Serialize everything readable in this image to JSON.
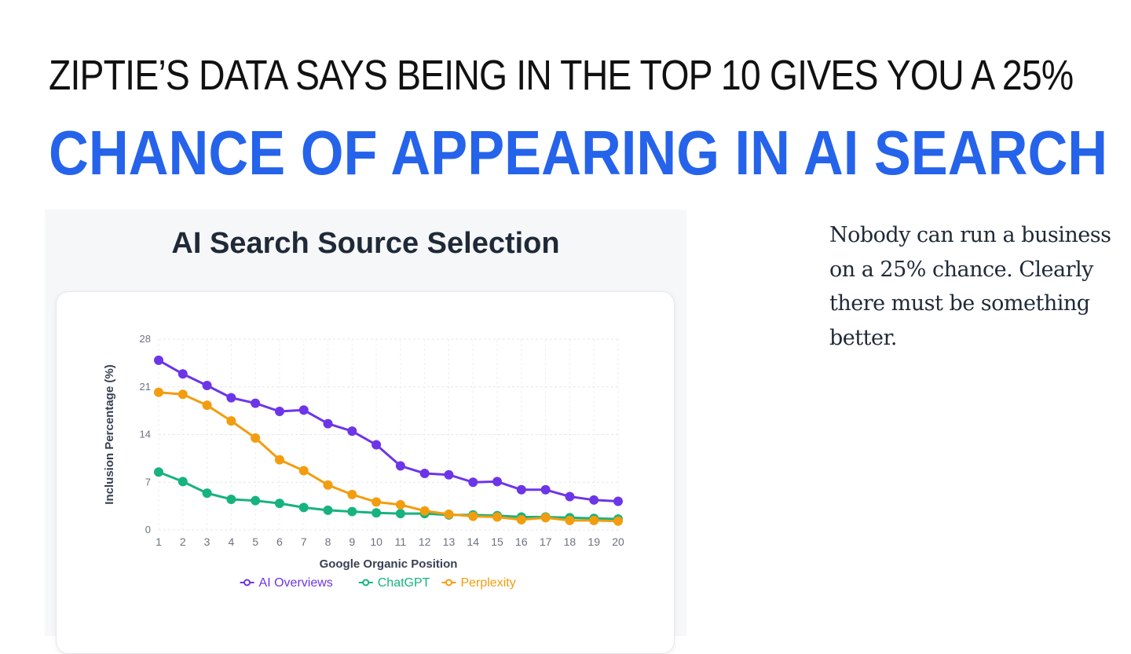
{
  "headline": {
    "line1": "ZIPTIE’S DATA SAYS BEING IN THE TOP 10 GIVES YOU A 25%",
    "line2": "CHANCE OF APPEARING IN AI SEARCH"
  },
  "body_text": "Nobody can run a business on a 25% chance. Clearly there must be something better.",
  "colors": {
    "accent": "#2563eb",
    "ai_overviews": "#6d35e8",
    "chatgpt": "#16b37e",
    "perplexity": "#f29d0f"
  },
  "chart_data": {
    "type": "line",
    "title": "AI Search Source Selection",
    "xlabel": "Google Organic Position",
    "ylabel": "Inclusion Percentage (%)",
    "x": [
      1,
      2,
      3,
      4,
      5,
      6,
      7,
      8,
      9,
      10,
      11,
      12,
      13,
      14,
      15,
      16,
      17,
      18,
      19,
      20
    ],
    "ylim": [
      0,
      28
    ],
    "yticks": [
      0,
      7,
      14,
      21,
      28
    ],
    "grid": true,
    "legend_position": "bottom",
    "series": [
      {
        "name": "AI Overviews",
        "color": "#6d35e8",
        "values": [
          24.9,
          22.9,
          21.2,
          19.4,
          18.6,
          17.4,
          17.6,
          15.6,
          14.5,
          12.5,
          9.4,
          8.3,
          8.1,
          7.0,
          7.1,
          5.9,
          5.9,
          4.9,
          4.4,
          4.2
        ]
      },
      {
        "name": "ChatGPT",
        "color": "#16b37e",
        "values": [
          8.5,
          7.1,
          5.4,
          4.5,
          4.3,
          3.9,
          3.3,
          2.9,
          2.7,
          2.5,
          2.4,
          2.4,
          2.2,
          2.2,
          2.1,
          1.9,
          1.9,
          1.8,
          1.7,
          1.6
        ]
      },
      {
        "name": "Perplexity",
        "color": "#f29d0f",
        "values": [
          20.2,
          19.9,
          18.3,
          16.0,
          13.5,
          10.3,
          8.7,
          6.6,
          5.2,
          4.1,
          3.7,
          2.8,
          2.3,
          2.0,
          1.9,
          1.5,
          1.8,
          1.4,
          1.4,
          1.3
        ]
      }
    ]
  }
}
